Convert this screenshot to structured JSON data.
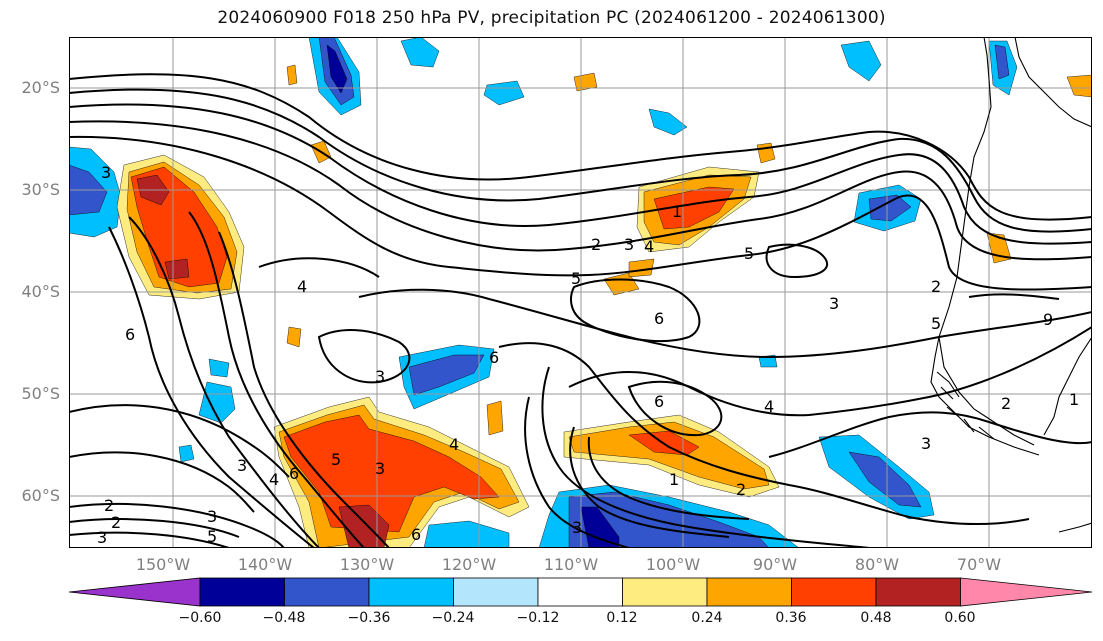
{
  "title": "2024060900 F018 250 hPa PV, precipitation PC (2024061200 - 2024061300)",
  "latitude_labels": [
    "20°S",
    "30°S",
    "40°S",
    "50°S",
    "60°S"
  ],
  "longitude_labels": [
    "150°W",
    "140°W",
    "130°W",
    "120°W",
    "110°W",
    "100°W",
    "90°W",
    "80°W",
    "70°W"
  ],
  "colorbar": {
    "ticks": [
      "−0.60",
      "−0.48",
      "−0.36",
      "−0.24",
      "−0.12",
      "0.12",
      "0.24",
      "0.36",
      "0.48",
      "0.60"
    ],
    "colors": [
      "#9933cc",
      "#000099",
      "#3355cc",
      "#00bfff",
      "#b3e5fc",
      "#ffffff",
      "#ffec80",
      "#ffa500",
      "#ff4000",
      "#b22222",
      "#ff88aa"
    ]
  },
  "pv_contour_labels": [
    "3",
    "3",
    "4",
    "6",
    "2",
    "4",
    "6",
    "3",
    "4",
    "5",
    "3",
    "6",
    "2",
    "3",
    "4",
    "6",
    "5",
    "1",
    "2",
    "3",
    "4",
    "5",
    "5",
    "6",
    "6",
    "3",
    "5",
    "1",
    "2",
    "4",
    "2",
    "9",
    "2",
    "1",
    "3"
  ]
}
